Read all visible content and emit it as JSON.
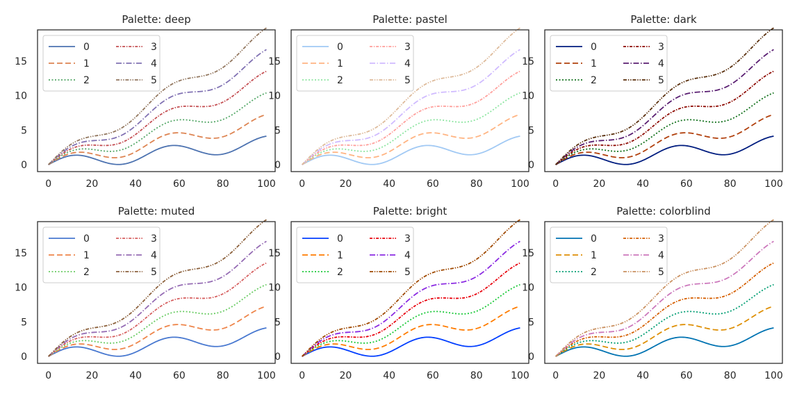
{
  "x": {
    "ticks": [
      0,
      20,
      40,
      60,
      80,
      100
    ],
    "lim": [
      -5,
      104
    ]
  },
  "y": {
    "ticks": [
      0,
      5,
      10,
      15
    ],
    "lim": [
      -1,
      19.5
    ]
  },
  "line_styles": [
    "solid",
    "dashed",
    "dotted",
    "dashdot-short",
    "dashdot",
    "dashdotdot"
  ],
  "chart_data": [
    {
      "type": "line",
      "title": "Palette: deep",
      "legend": {
        "loc": "upper-left",
        "ncol": 2
      },
      "series": [
        {
          "name": "0",
          "color": "#4c72b0"
        },
        {
          "name": "1",
          "color": "#dd8452"
        },
        {
          "name": "2",
          "color": "#55a868"
        },
        {
          "name": "3",
          "color": "#c44e52"
        },
        {
          "name": "4",
          "color": "#8172b3"
        },
        {
          "name": "5",
          "color": "#937860"
        }
      ]
    },
    {
      "type": "line",
      "title": "Palette: pastel",
      "legend": {
        "loc": "upper-left",
        "ncol": 2
      },
      "series": [
        {
          "name": "0",
          "color": "#a1c9f4"
        },
        {
          "name": "1",
          "color": "#ffb482"
        },
        {
          "name": "2",
          "color": "#8de5a1"
        },
        {
          "name": "3",
          "color": "#ff9f9b"
        },
        {
          "name": "4",
          "color": "#d0bbff"
        },
        {
          "name": "5",
          "color": "#debb9b"
        }
      ]
    },
    {
      "type": "line",
      "title": "Palette: dark",
      "legend": {
        "loc": "upper-left",
        "ncol": 2
      },
      "series": [
        {
          "name": "0",
          "color": "#001c7f"
        },
        {
          "name": "1",
          "color": "#b1400d"
        },
        {
          "name": "2",
          "color": "#12711c"
        },
        {
          "name": "3",
          "color": "#8c0800"
        },
        {
          "name": "4",
          "color": "#591e71"
        },
        {
          "name": "5",
          "color": "#592f0d"
        }
      ]
    },
    {
      "type": "line",
      "title": "Palette: muted",
      "legend": {
        "loc": "upper-left",
        "ncol": 2
      },
      "series": [
        {
          "name": "0",
          "color": "#4878d0"
        },
        {
          "name": "1",
          "color": "#ee854a"
        },
        {
          "name": "2",
          "color": "#6acc64"
        },
        {
          "name": "3",
          "color": "#d65f5f"
        },
        {
          "name": "4",
          "color": "#956cb4"
        },
        {
          "name": "5",
          "color": "#8c613c"
        }
      ]
    },
    {
      "type": "line",
      "title": "Palette: bright",
      "legend": {
        "loc": "upper-left",
        "ncol": 2
      },
      "series": [
        {
          "name": "0",
          "color": "#023eff"
        },
        {
          "name": "1",
          "color": "#ff7c00"
        },
        {
          "name": "2",
          "color": "#1ac938"
        },
        {
          "name": "3",
          "color": "#e8000b"
        },
        {
          "name": "4",
          "color": "#8b2be2"
        },
        {
          "name": "5",
          "color": "#9f4800"
        }
      ]
    },
    {
      "type": "line",
      "title": "Palette: colorblind",
      "legend": {
        "loc": "upper-left",
        "ncol": 2
      },
      "series": [
        {
          "name": "0",
          "color": "#0173b2"
        },
        {
          "name": "1",
          "color": "#de8f05"
        },
        {
          "name": "2",
          "color": "#029e73"
        },
        {
          "name": "3",
          "color": "#d55e00"
        },
        {
          "name": "4",
          "color": "#cc78bc"
        },
        {
          "name": "5",
          "color": "#ca9161"
        }
      ]
    }
  ]
}
